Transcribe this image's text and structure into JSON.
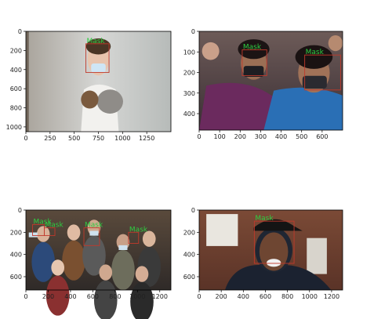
{
  "chart_data": [
    {
      "type": "image",
      "xlim": [
        0,
        1500
      ],
      "ylim": [
        1050,
        0
      ],
      "xticks": [
        "0",
        "250",
        "500",
        "750",
        "1000",
        "1250"
      ],
      "xtick_values": [
        0,
        250,
        500,
        750,
        1000,
        1250
      ],
      "yticks": [
        "0",
        "200",
        "400",
        "600",
        "800",
        "1000"
      ],
      "ytick_values": [
        0,
        200,
        400,
        600,
        800,
        1000
      ],
      "scene": "child",
      "boxes": [
        {
          "x0": 620,
          "y0": 130,
          "x1": 860,
          "y1": 430,
          "label": "Mask",
          "color": "#c0392b"
        }
      ]
    },
    {
      "type": "image",
      "xlim": [
        0,
        700
      ],
      "ylim": [
        480,
        0
      ],
      "xticks": [
        "0",
        "100",
        "200",
        "300",
        "400",
        "500",
        "600"
      ],
      "xtick_values": [
        0,
        100,
        200,
        300,
        400,
        500,
        600
      ],
      "yticks": [
        "0",
        "100",
        "200",
        "300",
        "400"
      ],
      "ytick_values": [
        0,
        100,
        200,
        300,
        400
      ],
      "scene": "women",
      "boxes": [
        {
          "x0": 210,
          "y0": 90,
          "x1": 330,
          "y1": 215,
          "label": "Mask",
          "color": "#c0392b"
        },
        {
          "x0": 515,
          "y0": 115,
          "x1": 690,
          "y1": 285,
          "label": "Mask",
          "color": "#c0392b"
        }
      ]
    },
    {
      "type": "image",
      "xlim": [
        0,
        1300
      ],
      "ylim": [
        720,
        0
      ],
      "xticks": [
        "0",
        "200",
        "400",
        "600",
        "800",
        "1000",
        "1200"
      ],
      "xtick_values": [
        0,
        200,
        400,
        600,
        800,
        1000,
        1200
      ],
      "yticks": [
        "0",
        "200",
        "400",
        "600"
      ],
      "ytick_values": [
        0,
        200,
        400,
        600
      ],
      "scene": "crowd",
      "boxes": [
        {
          "x0": 60,
          "y0": 130,
          "x1": 165,
          "y1": 230,
          "label": "Mask",
          "color": "#c0392b"
        },
        {
          "x0": 165,
          "y0": 160,
          "x1": 260,
          "y1": 230,
          "label": "Mask",
          "color": "#c0392b"
        },
        {
          "x0": 520,
          "y0": 160,
          "x1": 660,
          "y1": 320,
          "label": "Mask",
          "color": "#c0392b"
        },
        {
          "x0": 920,
          "y0": 200,
          "x1": 1010,
          "y1": 300,
          "label": "Mask",
          "color": "#c0392b"
        }
      ]
    },
    {
      "type": "image",
      "xlim": [
        0,
        1300
      ],
      "ylim": [
        720,
        0
      ],
      "xticks": [
        "0",
        "200",
        "400",
        "600",
        "800",
        "1000",
        "1200"
      ],
      "xtick_values": [
        0,
        200,
        400,
        600,
        800,
        1000,
        1200
      ],
      "yticks": [
        "0",
        "200",
        "400",
        "600"
      ],
      "ytick_values": [
        0,
        200,
        400,
        600
      ],
      "scene": "man",
      "boxes": [
        {
          "x0": 500,
          "y0": 100,
          "x1": 860,
          "y1": 480,
          "label": "Mask",
          "color": "#c0392b"
        }
      ]
    }
  ]
}
